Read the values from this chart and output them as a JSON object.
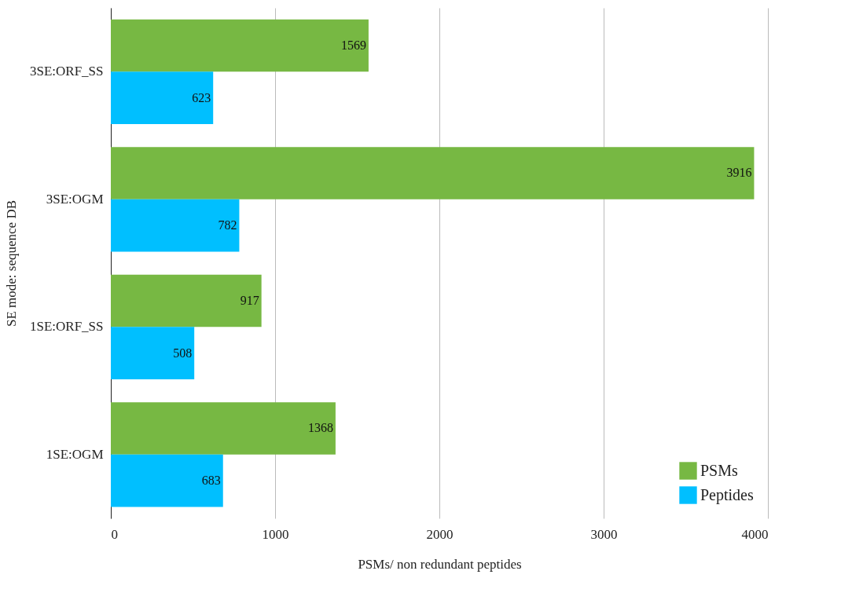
{
  "chart_data": {
    "type": "bar",
    "orientation": "horizontal",
    "xlabel": "PSMs/ non redundant peptides",
    "ylabel": "SE mode: sequence DB",
    "categories": [
      "3SE:ORF_SS",
      "3SE:OGM",
      "1SE:ORF_SS",
      "1SE:OGM"
    ],
    "series": [
      {
        "name": "PSMs",
        "color": "#77b843",
        "values": [
          1569,
          3916,
          917,
          1368
        ]
      },
      {
        "name": "Peptides",
        "color": "#00bfff",
        "values": [
          623,
          782,
          508,
          683
        ]
      }
    ],
    "xlim": [
      0,
      4000
    ],
    "xticks": [
      0,
      1000,
      2000,
      3000,
      4000
    ],
    "grid": "x",
    "legend": "bottom right",
    "data_labels": true
  }
}
